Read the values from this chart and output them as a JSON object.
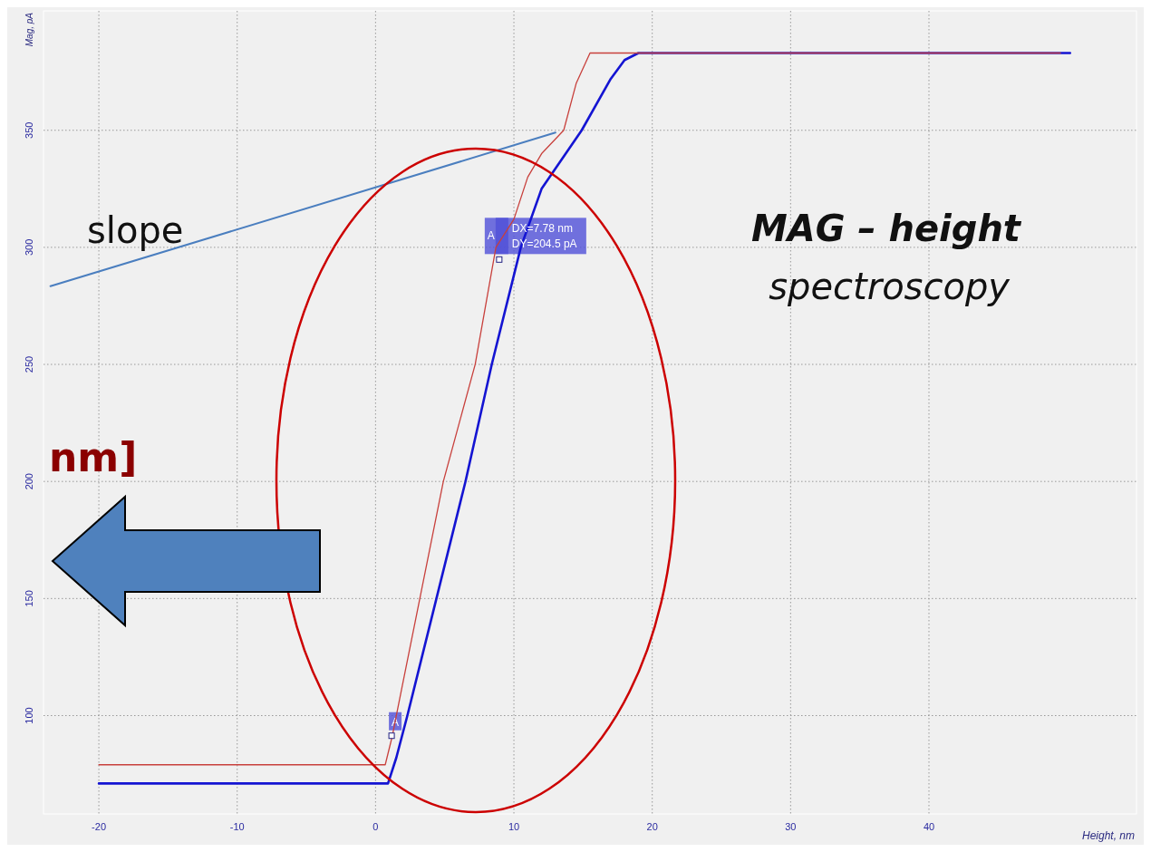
{
  "chart_data": {
    "type": "line",
    "xlabel": "Height, nm",
    "ylabel": "Mag, pA",
    "xlim": [
      -24,
      55
    ],
    "ylim": [
      58,
      401
    ],
    "xticks": [
      -20,
      -10,
      0,
      10,
      20,
      30,
      40
    ],
    "yticks": [
      100,
      150,
      200,
      250,
      300,
      350
    ],
    "grid": true,
    "series": [
      {
        "color": "#c8403c",
        "x": [
          -20,
          0.7,
          1.2,
          1.5,
          3.2,
          4.9,
          7.2,
          8.7,
          10,
          11,
          12,
          13.6,
          14.5,
          15.5,
          49.5
        ],
        "values": [
          79,
          79,
          91,
          100,
          150,
          200,
          250,
          300,
          312,
          330,
          340,
          350,
          370,
          383,
          383
        ]
      },
      {
        "color": "#1414d2",
        "x": [
          -20,
          0.9,
          1.5,
          2.3,
          4.4,
          6.5,
          8.4,
          10.5,
          12,
          14.9,
          17,
          18,
          19,
          50.2
        ],
        "values": [
          71,
          71,
          82,
          100,
          150,
          200,
          250,
          300,
          325,
          350,
          372,
          380,
          383,
          383
        ]
      },
      {
        "color": "#4a7ebf",
        "x": [
          -23.5,
          13
        ],
        "values": [
          283.4,
          349
        ]
      }
    ],
    "annotations": [
      "slope",
      "MAG – height",
      "spectroscopy",
      "nm]",
      "DX=7.78 nm",
      "DY=204.5 pA",
      {
        "text": "A",
        "x": 1.16,
        "y": 91.4
      },
      {
        "text": "A",
        "x": 8.94,
        "y": 294.8
      }
    ]
  }
}
